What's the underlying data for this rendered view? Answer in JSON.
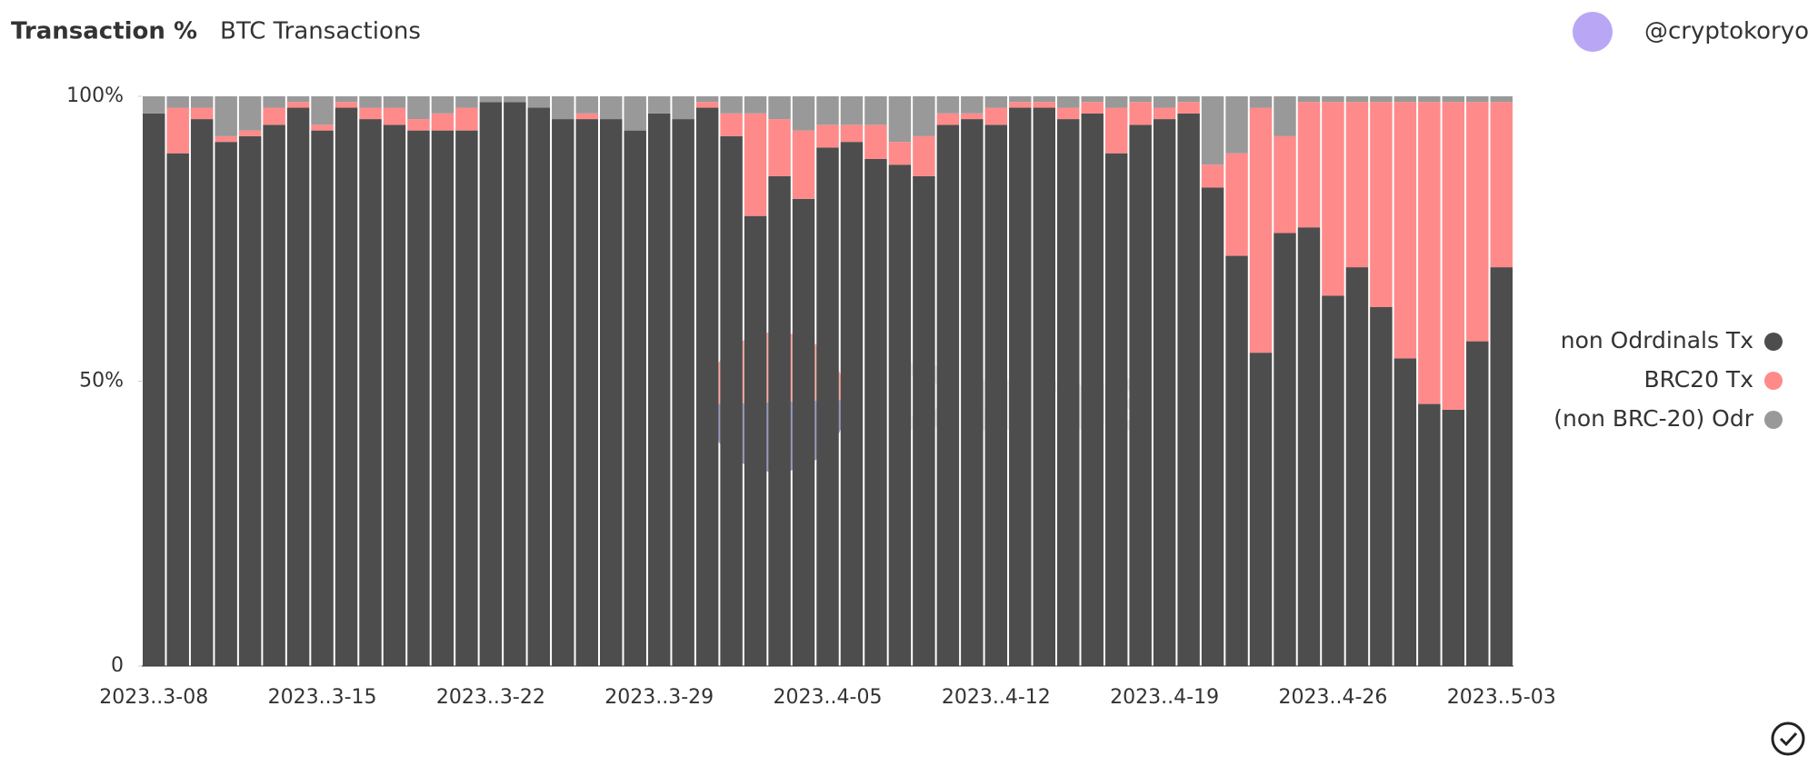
{
  "header": {
    "author": "@cryptokoryo"
  },
  "watermark": "Dune",
  "chart_data": {
    "type": "stacked_bar",
    "title": "Transaction %",
    "subtitle": "BTC Transactions",
    "categories": [
      "2023..3-08",
      null,
      null,
      null,
      null,
      null,
      null,
      "2023..3-15",
      null,
      null,
      null,
      null,
      null,
      null,
      "2023..3-22",
      null,
      null,
      null,
      null,
      null,
      null,
      "2023..3-29",
      null,
      null,
      null,
      null,
      null,
      null,
      "2023..4-05",
      null,
      null,
      null,
      null,
      null,
      null,
      "2023..4-12",
      null,
      null,
      null,
      null,
      null,
      null,
      "2023..4-19",
      null,
      null,
      null,
      null,
      null,
      null,
      "2023..4-26",
      null,
      null,
      null,
      null,
      null,
      null,
      "2023..5-03"
    ],
    "series": [
      {
        "name": "non Odrdinals Tx",
        "color": "#4d4d4d",
        "values": [
          97,
          90,
          96,
          92,
          93,
          95,
          98,
          94,
          98,
          96,
          95,
          94,
          94,
          94,
          99,
          99,
          98,
          96,
          96,
          96,
          94,
          97,
          96,
          98,
          93,
          79,
          86,
          82,
          91,
          92,
          89,
          88,
          86,
          95,
          96,
          95,
          98,
          98,
          96,
          97,
          90,
          95,
          96,
          97,
          84,
          72,
          55,
          76,
          77,
          65,
          70,
          63,
          54,
          46,
          45,
          57,
          70
        ]
      },
      {
        "name": "BRC20 Tx",
        "color": "#ff8a8a",
        "values": [
          0,
          8,
          2,
          1,
          1,
          3,
          1,
          1,
          1,
          2,
          3,
          2,
          3,
          4,
          0,
          0,
          0,
          0,
          1,
          0,
          0,
          0,
          0,
          1,
          4,
          18,
          10,
          12,
          4,
          3,
          6,
          4,
          7,
          2,
          1,
          3,
          1,
          1,
          2,
          2,
          8,
          4,
          2,
          2,
          4,
          18,
          43,
          17,
          22,
          34,
          29,
          36,
          45,
          53,
          54,
          42,
          29
        ]
      },
      {
        "name": "(non BRC-20) Odr",
        "color": "#999999",
        "values": [
          3,
          2,
          2,
          7,
          6,
          2,
          1,
          5,
          1,
          2,
          2,
          4,
          3,
          2,
          1,
          1,
          2,
          4,
          3,
          4,
          6,
          3,
          4,
          1,
          3,
          3,
          4,
          6,
          5,
          5,
          5,
          8,
          7,
          3,
          3,
          2,
          1,
          1,
          2,
          1,
          2,
          1,
          2,
          1,
          12,
          10,
          2,
          7,
          1,
          1,
          1,
          1,
          1,
          1,
          1,
          1,
          1
        ]
      }
    ],
    "ylim": [
      0,
      100
    ],
    "yticks": [
      {
        "value": 0,
        "label": "0"
      },
      {
        "value": 50,
        "label": "50%"
      },
      {
        "value": 100,
        "label": "100%"
      }
    ],
    "legend": "right"
  }
}
